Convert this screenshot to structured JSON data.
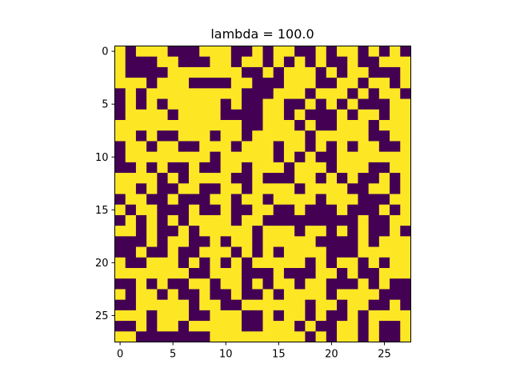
{
  "chart_data": {
    "type": "heatmap",
    "title": "lambda = 100.0",
    "xlabel": "",
    "ylabel": "",
    "colormap": "viridis",
    "colors": {
      "low": "#440154",
      "high": "#fde725",
      "mid_high": "#e7e419",
      "mid_low": "#482878"
    },
    "grid": false,
    "rows": 28,
    "cols": 28,
    "x_ticks": [
      0,
      5,
      10,
      15,
      20,
      25
    ],
    "y_ticks": [
      0,
      5,
      10,
      15,
      20,
      25
    ],
    "x_tick_labels": [
      "0",
      "5",
      "10",
      "15",
      "20",
      "25"
    ],
    "y_tick_labels": [
      "0",
      "5",
      "10",
      "15",
      "20",
      "25"
    ],
    "values": [
      [
        1,
        0,
        1,
        1,
        1,
        0,
        0,
        0,
        1,
        1,
        1,
        0,
        0,
        1,
        0,
        1,
        1,
        0,
        0,
        1,
        0,
        1,
        1,
        0,
        1,
        0,
        1,
        0
      ],
      [
        1,
        0,
        0,
        0,
        1,
        1,
        0,
        0,
        0,
        1,
        1,
        0,
        1,
        1,
        0,
        1,
        0,
        1,
        0,
        1,
        0,
        0,
        1,
        0,
        0,
        1,
        1,
        1
      ],
      [
        1,
        0,
        0,
        0,
        0,
        1,
        1,
        1,
        1,
        1,
        1,
        1,
        0,
        0,
        1,
        0,
        1,
        1,
        1,
        0,
        1,
        0,
        1,
        1,
        0,
        0,
        0,
        1
      ],
      [
        1,
        1,
        1,
        0,
        1,
        1,
        1,
        0,
        0,
        0,
        0,
        1,
        1,
        0,
        0,
        0,
        1,
        1,
        1,
        0,
        0,
        1,
        1,
        0,
        1,
        1,
        0,
        1
      ],
      [
        0,
        1,
        0,
        1,
        1,
        1,
        1,
        1,
        1,
        1,
        1,
        1,
        0,
        0,
        0,
        1,
        1,
        1,
        0,
        1,
        1,
        1,
        0,
        1,
        0,
        1,
        1,
        0
      ],
      [
        0,
        1,
        0,
        1,
        0,
        1,
        1,
        1,
        1,
        1,
        0,
        1,
        0,
        0,
        1,
        1,
        0,
        0,
        1,
        0,
        1,
        0,
        1,
        0,
        0,
        0,
        1,
        1
      ],
      [
        0,
        1,
        1,
        1,
        1,
        0,
        1,
        1,
        1,
        1,
        0,
        0,
        0,
        0,
        1,
        1,
        0,
        1,
        0,
        0,
        0,
        1,
        0,
        1,
        1,
        0,
        1,
        1
      ],
      [
        1,
        1,
        1,
        1,
        1,
        1,
        1,
        1,
        1,
        1,
        1,
        1,
        0,
        0,
        1,
        1,
        1,
        0,
        1,
        0,
        0,
        1,
        1,
        1,
        0,
        1,
        1,
        1
      ],
      [
        1,
        1,
        0,
        1,
        0,
        0,
        1,
        1,
        1,
        0,
        1,
        1,
        0,
        1,
        1,
        1,
        1,
        1,
        0,
        1,
        1,
        1,
        1,
        1,
        0,
        0,
        1,
        1
      ],
      [
        0,
        1,
        1,
        0,
        1,
        1,
        0,
        0,
        1,
        1,
        1,
        0,
        1,
        1,
        1,
        0,
        1,
        1,
        0,
        1,
        0,
        1,
        0,
        1,
        1,
        0,
        0,
        1
      ],
      [
        0,
        1,
        1,
        1,
        1,
        1,
        1,
        1,
        1,
        0,
        1,
        1,
        1,
        1,
        1,
        0,
        1,
        0,
        1,
        0,
        0,
        1,
        1,
        1,
        1,
        1,
        1,
        1
      ],
      [
        0,
        0,
        1,
        0,
        1,
        0,
        0,
        1,
        0,
        0,
        1,
        1,
        0,
        1,
        1,
        1,
        0,
        1,
        1,
        1,
        0,
        1,
        1,
        1,
        0,
        0,
        1,
        1
      ],
      [
        1,
        1,
        1,
        1,
        0,
        1,
        0,
        1,
        1,
        1,
        1,
        0,
        0,
        1,
        0,
        0,
        0,
        1,
        1,
        0,
        1,
        0,
        1,
        0,
        0,
        1,
        0,
        1
      ],
      [
        1,
        1,
        0,
        1,
        0,
        0,
        1,
        1,
        0,
        0,
        1,
        1,
        0,
        1,
        1,
        1,
        1,
        0,
        1,
        1,
        1,
        1,
        0,
        0,
        1,
        1,
        0,
        1
      ],
      [
        0,
        1,
        1,
        0,
        0,
        1,
        0,
        0,
        0,
        1,
        1,
        0,
        1,
        1,
        0,
        1,
        1,
        1,
        1,
        0,
        1,
        1,
        1,
        0,
        0,
        0,
        1,
        1
      ],
      [
        1,
        0,
        1,
        1,
        0,
        0,
        0,
        1,
        0,
        0,
        1,
        0,
        0,
        1,
        1,
        0,
        0,
        1,
        0,
        0,
        0,
        1,
        0,
        0,
        0,
        1,
        0,
        1
      ],
      [
        0,
        1,
        0,
        1,
        0,
        1,
        0,
        1,
        1,
        1,
        1,
        0,
        1,
        1,
        0,
        0,
        0,
        0,
        0,
        0,
        0,
        0,
        0,
        1,
        0,
        0,
        1,
        1
      ],
      [
        1,
        1,
        0,
        1,
        0,
        0,
        1,
        0,
        1,
        1,
        1,
        1,
        1,
        0,
        1,
        1,
        1,
        0,
        1,
        1,
        0,
        1,
        0,
        1,
        0,
        0,
        1,
        0
      ],
      [
        0,
        0,
        0,
        1,
        0,
        1,
        1,
        0,
        0,
        1,
        0,
        1,
        1,
        0,
        1,
        1,
        1,
        1,
        1,
        0,
        0,
        0,
        0,
        1,
        0,
        1,
        1,
        1
      ],
      [
        0,
        0,
        1,
        0,
        0,
        1,
        0,
        0,
        1,
        1,
        1,
        0,
        1,
        0,
        1,
        0,
        1,
        1,
        1,
        1,
        0,
        0,
        0,
        1,
        1,
        1,
        1,
        1
      ],
      [
        1,
        0,
        0,
        1,
        1,
        1,
        0,
        1,
        0,
        1,
        0,
        1,
        0,
        1,
        1,
        1,
        1,
        1,
        0,
        1,
        0,
        1,
        1,
        0,
        1,
        0,
        1,
        1
      ],
      [
        1,
        1,
        1,
        1,
        1,
        1,
        1,
        0,
        0,
        1,
        1,
        1,
        0,
        0,
        0,
        1,
        0,
        0,
        0,
        1,
        1,
        0,
        1,
        0,
        0,
        1,
        1,
        1
      ],
      [
        0,
        0,
        1,
        0,
        1,
        0,
        0,
        1,
        1,
        0,
        1,
        1,
        0,
        1,
        0,
        1,
        1,
        0,
        1,
        1,
        0,
        0,
        0,
        1,
        0,
        1,
        0,
        0
      ],
      [
        1,
        0,
        1,
        1,
        0,
        1,
        0,
        0,
        1,
        0,
        0,
        1,
        0,
        0,
        1,
        0,
        1,
        1,
        1,
        1,
        0,
        1,
        1,
        1,
        1,
        0,
        0,
        0
      ],
      [
        0,
        0,
        1,
        1,
        1,
        1,
        1,
        0,
        1,
        1,
        0,
        0,
        1,
        1,
        1,
        1,
        1,
        1,
        0,
        1,
        1,
        0,
        1,
        1,
        0,
        0,
        1,
        0
      ],
      [
        1,
        1,
        1,
        0,
        1,
        1,
        1,
        0,
        0,
        1,
        1,
        1,
        0,
        0,
        1,
        0,
        1,
        1,
        0,
        1,
        0,
        0,
        1,
        0,
        1,
        1,
        1,
        1
      ],
      [
        0,
        0,
        1,
        0,
        1,
        1,
        0,
        1,
        1,
        1,
        1,
        1,
        0,
        0,
        1,
        1,
        1,
        0,
        1,
        0,
        0,
        1,
        1,
        0,
        1,
        0,
        0,
        1
      ],
      [
        1,
        1,
        0,
        0,
        0,
        0,
        0,
        0,
        0,
        1,
        1,
        1,
        1,
        1,
        1,
        1,
        1,
        1,
        0,
        1,
        0,
        1,
        1,
        0,
        1,
        0,
        0,
        1
      ]
    ]
  }
}
